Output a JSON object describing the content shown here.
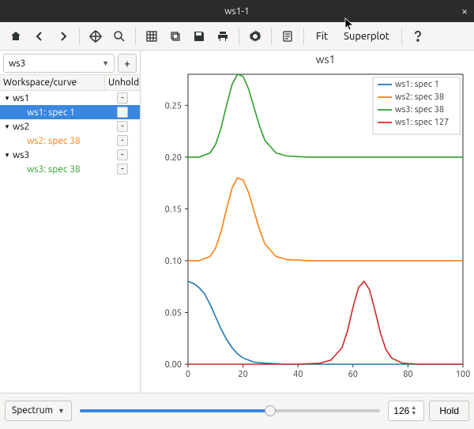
{
  "window": {
    "title": "ws1-1"
  },
  "toolbar": {
    "fit_label": "Fit",
    "superplot_label": "Superplot",
    "superplot_pressed": true
  },
  "ws_combo": {
    "value": "ws3",
    "plus": "+"
  },
  "tree": {
    "headers": {
      "col1": "Workspace/curve",
      "col2": "Unhold"
    },
    "nodes": [
      {
        "label": "ws1",
        "depth": 0,
        "expanded": true,
        "unhold": true,
        "selected": false,
        "color": "#000000"
      },
      {
        "label": "ws1: spec 1",
        "depth": 1,
        "unhold": true,
        "selected": true,
        "color": "#1f77b4"
      },
      {
        "label": "ws2",
        "depth": 0,
        "expanded": true,
        "unhold": true,
        "selected": false,
        "color": "#000000"
      },
      {
        "label": "ws2: spec 38",
        "depth": 1,
        "unhold": true,
        "selected": false,
        "color": "#ff7f0e"
      },
      {
        "label": "ws3",
        "depth": 0,
        "expanded": true,
        "unhold": true,
        "selected": false,
        "color": "#000000"
      },
      {
        "label": "ws3: spec 38",
        "depth": 1,
        "unhold": true,
        "selected": false,
        "color": "#2ca02c"
      }
    ]
  },
  "chart": {
    "type": "line",
    "title": "ws1",
    "title_fontsize": 14,
    "background_color": "#ffffff",
    "axes_color": "#2e2e2e",
    "tick_fontsize": 11,
    "xlim": [
      0,
      100
    ],
    "ylim": [
      0.0,
      0.28
    ],
    "xticks": [
      0,
      20,
      40,
      60,
      80,
      100
    ],
    "yticks": [
      0.0,
      0.05,
      0.1,
      0.15,
      0.2,
      0.25
    ],
    "legend": {
      "position": "top-right",
      "fontsize": 11,
      "border_color": "#cccccc",
      "items": [
        {
          "label": "ws1: spec 1",
          "color": "#1f77b4"
        },
        {
          "label": "ws2: spec 38",
          "color": "#ff7f0e"
        },
        {
          "label": "ws3: spec 38",
          "color": "#2ca02c"
        },
        {
          "label": "ws1: spec 127",
          "color": "#d62728"
        }
      ]
    },
    "series": [
      {
        "name": "ws1: spec 1",
        "color": "#1f77b4",
        "line_width": 1.6,
        "x": [
          0,
          2,
          4,
          6,
          8,
          10,
          12,
          14,
          16,
          18,
          20,
          24,
          28,
          36,
          50,
          70,
          100
        ],
        "y": [
          0.08,
          0.078,
          0.074,
          0.068,
          0.058,
          0.046,
          0.034,
          0.024,
          0.016,
          0.01,
          0.006,
          0.002,
          0.001,
          0.0,
          0.0,
          0.0,
          0.0
        ]
      },
      {
        "name": "ws2: spec 38",
        "color": "#ff7f0e",
        "line_width": 1.6,
        "x": [
          0,
          4,
          8,
          10,
          12,
          14,
          16,
          18,
          20,
          22,
          24,
          26,
          28,
          32,
          36,
          44,
          60,
          100
        ],
        "y": [
          0.1,
          0.1,
          0.104,
          0.112,
          0.128,
          0.15,
          0.17,
          0.18,
          0.178,
          0.166,
          0.148,
          0.13,
          0.116,
          0.104,
          0.101,
          0.1,
          0.1,
          0.1
        ]
      },
      {
        "name": "ws3: spec 38",
        "color": "#2ca02c",
        "line_width": 1.6,
        "x": [
          0,
          4,
          8,
          10,
          12,
          14,
          16,
          18,
          20,
          22,
          24,
          26,
          28,
          32,
          36,
          44,
          60,
          100
        ],
        "y": [
          0.2,
          0.2,
          0.204,
          0.212,
          0.228,
          0.25,
          0.27,
          0.28,
          0.278,
          0.266,
          0.248,
          0.23,
          0.216,
          0.204,
          0.201,
          0.2,
          0.2,
          0.2
        ]
      },
      {
        "name": "ws1: spec 127",
        "color": "#d62728",
        "line_width": 1.6,
        "x": [
          0,
          40,
          48,
          52,
          56,
          58,
          60,
          62,
          64,
          66,
          68,
          70,
          72,
          74,
          78,
          84,
          100
        ],
        "y": [
          0.0,
          0.0,
          0.001,
          0.004,
          0.016,
          0.032,
          0.055,
          0.074,
          0.08,
          0.072,
          0.052,
          0.03,
          0.014,
          0.006,
          0.001,
          0.0,
          0.0
        ]
      }
    ]
  },
  "bottom": {
    "mode_label": "Spectrum",
    "slider": {
      "min": 0,
      "max": 200,
      "value": 126
    },
    "spin_value": "126",
    "hold_label": "Hold"
  }
}
